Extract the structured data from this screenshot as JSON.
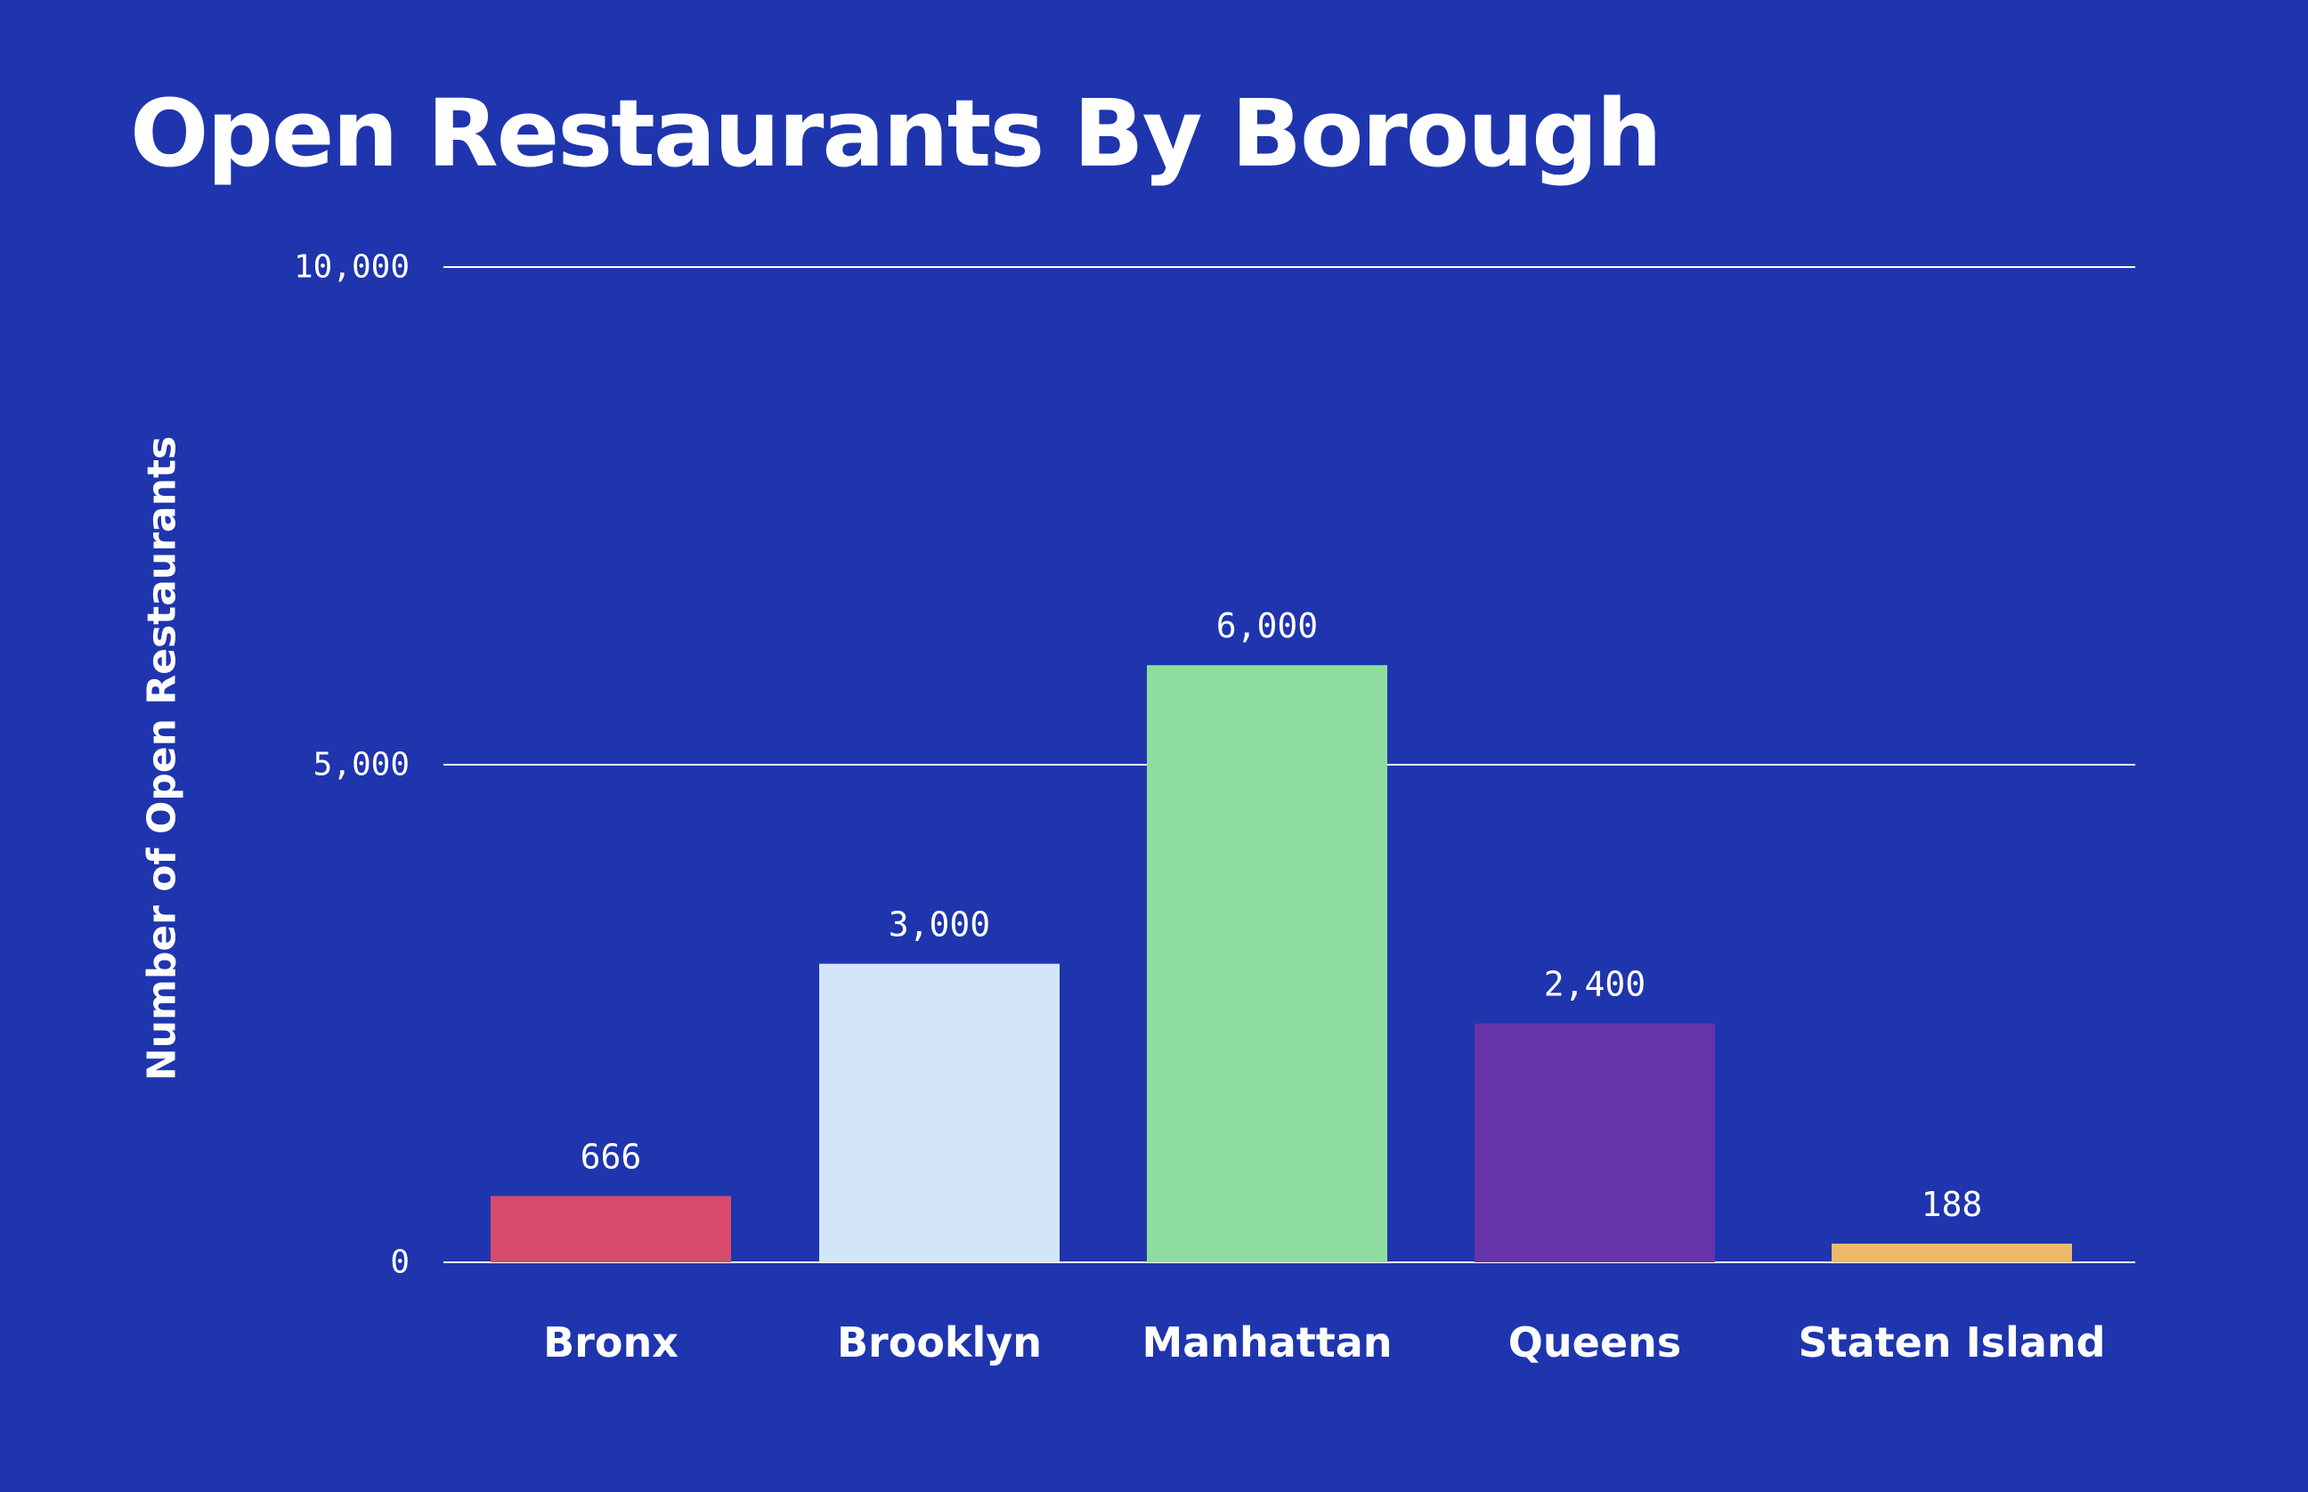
{
  "chart_data": {
    "type": "bar",
    "title": "Open Restaurants By Borough",
    "xlabel": "",
    "ylabel": "Number of Open Restaurants",
    "categories": [
      "Bronx",
      "Brooklyn",
      "Manhattan",
      "Queens",
      "Staten Island"
    ],
    "values": [
      666,
      3000,
      6000,
      2400,
      188
    ],
    "value_labels": [
      "666",
      "3,000",
      "6,000",
      "2,400",
      "188"
    ],
    "bar_colors": [
      "#d94b6b",
      "#d3e6f9",
      "#8edd9f",
      "#6633a9",
      "#ecb968"
    ],
    "ylim": [
      0,
      10000
    ],
    "yticks": [
      0,
      5000,
      10000
    ],
    "ytick_labels": [
      "0",
      "5,000",
      "10,000"
    ],
    "grid": true,
    "legend": "none"
  },
  "colors": {
    "background": "#1f35ae",
    "text": "#ffffff",
    "gridline": "#ffffff"
  }
}
